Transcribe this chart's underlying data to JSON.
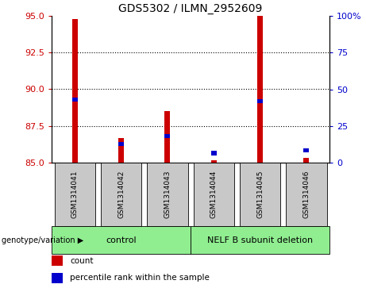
{
  "title": "GDS5302 / ILMN_2952609",
  "samples": [
    "GSM1314041",
    "GSM1314042",
    "GSM1314043",
    "GSM1314044",
    "GSM1314045",
    "GSM1314046"
  ],
  "red_values": [
    94.8,
    86.7,
    88.5,
    85.15,
    95.0,
    85.3
  ],
  "blue_values": [
    89.3,
    86.25,
    86.8,
    85.65,
    89.2,
    85.85
  ],
  "ylim_left": [
    85,
    95
  ],
  "ylim_right": [
    0,
    100
  ],
  "yticks_left": [
    85,
    87.5,
    90,
    92.5,
    95
  ],
  "yticks_right": [
    0,
    25,
    50,
    75,
    100
  ],
  "ytick_right_labels": [
    "0",
    "25",
    "50",
    "75",
    "100%"
  ],
  "left_color": "#cc0000",
  "blue_color": "#0000cc",
  "bg_color": "#c8c8c8",
  "plot_bg": "#ffffff",
  "bar_width": 0.12,
  "blue_bar_height": 0.28,
  "legend_red_label": "count",
  "legend_blue_label": "percentile rank within the sample",
  "dotted_yticks": [
    87.5,
    90,
    92.5
  ],
  "control_label": "control",
  "deletion_label": "NELF B subunit deletion",
  "group_color": "#90ee90",
  "genotype_label": "genotype/variation",
  "title_fontsize": 10,
  "axis_label_fontsize": 8,
  "sample_fontsize": 6.5,
  "group_fontsize": 8,
  "legend_fontsize": 7.5
}
